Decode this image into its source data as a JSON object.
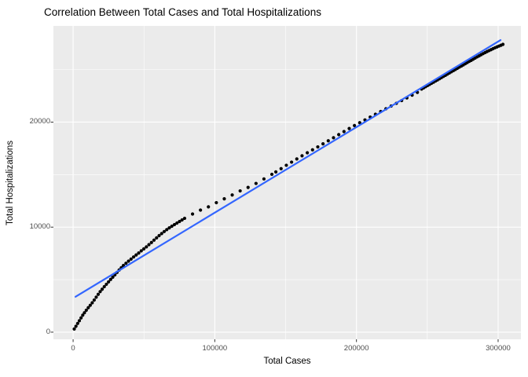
{
  "title": "Correlation Between Total Cases and Total Hospitalizations",
  "chart_data": {
    "type": "scatter",
    "title": "Correlation Between Total Cases and Total Hospitalizations",
    "xlabel": "Total Cases",
    "ylabel": "Total Hospitalizations",
    "xlim": [
      -13900,
      316100
    ],
    "ylim": [
      -680,
      29160
    ],
    "x_major_ticks": [
      0,
      100000,
      200000,
      300000
    ],
    "x_tick_labels": [
      "0",
      "100000",
      "200000",
      "300000"
    ],
    "x_minor_ticks": [
      50000,
      150000,
      250000
    ],
    "y_major_ticks": [
      0,
      10000,
      20000
    ],
    "y_tick_labels": [
      "0",
      "10000",
      "20000"
    ],
    "y_minor_ticks": [
      5000,
      15000,
      25000
    ],
    "grid": true,
    "legend": "none",
    "panel_bg_color": "#EBEBEB",
    "grid_color": "#FFFFFF",
    "tick_mark_color": "#333333",
    "tick_label_color": "#4D4D4D",
    "point_color": "#000000",
    "trend_line": {
      "color": "#3366FF",
      "x1": 1700,
      "y1": 3370,
      "x2": 301700,
      "y2": 27810
    },
    "points": [
      [
        800,
        300
      ],
      [
        2000,
        560
      ],
      [
        3200,
        830
      ],
      [
        4400,
        1090
      ],
      [
        5600,
        1360
      ],
      [
        6800,
        1620
      ],
      [
        8000,
        1850
      ],
      [
        9300,
        2090
      ],
      [
        10700,
        2330
      ],
      [
        12100,
        2560
      ],
      [
        13500,
        2800
      ],
      [
        14900,
        3060
      ],
      [
        16300,
        3330
      ],
      [
        17700,
        3600
      ],
      [
        19100,
        3860
      ],
      [
        20500,
        4090
      ],
      [
        22000,
        4330
      ],
      [
        23500,
        4560
      ],
      [
        25000,
        4790
      ],
      [
        26500,
        5020
      ],
      [
        28000,
        5240
      ],
      [
        29500,
        5460
      ],
      [
        31000,
        5690
      ],
      [
        32500,
        5920
      ],
      [
        34000,
        6140
      ],
      [
        35500,
        6350
      ],
      [
        37300,
        6560
      ],
      [
        39100,
        6760
      ],
      [
        40900,
        6960
      ],
      [
        42700,
        7160
      ],
      [
        44500,
        7350
      ],
      [
        46300,
        7540
      ],
      [
        48100,
        7740
      ],
      [
        49900,
        7930
      ],
      [
        51700,
        8120
      ],
      [
        53500,
        8330
      ],
      [
        55300,
        8540
      ],
      [
        57100,
        8760
      ],
      [
        58900,
        8980
      ],
      [
        60700,
        9190
      ],
      [
        62500,
        9390
      ],
      [
        64300,
        9580
      ],
      [
        66100,
        9760
      ],
      [
        67900,
        9930
      ],
      [
        69700,
        10090
      ],
      [
        71500,
        10240
      ],
      [
        73300,
        10390
      ],
      [
        75100,
        10540
      ],
      [
        76900,
        10690
      ],
      [
        78700,
        10840
      ],
      [
        84300,
        11250
      ],
      [
        89900,
        11620
      ],
      [
        95500,
        11930
      ],
      [
        101100,
        12330
      ],
      [
        106700,
        12700
      ],
      [
        112300,
        13060
      ],
      [
        117900,
        13450
      ],
      [
        123500,
        13780
      ],
      [
        129100,
        14160
      ],
      [
        134700,
        14590
      ],
      [
        140300,
        15030
      ],
      [
        143100,
        15260
      ],
      [
        146800,
        15570
      ],
      [
        150500,
        15890
      ],
      [
        154200,
        16190
      ],
      [
        157900,
        16490
      ],
      [
        161600,
        16790
      ],
      [
        165300,
        17080
      ],
      [
        169000,
        17360
      ],
      [
        172700,
        17640
      ],
      [
        176400,
        17930
      ],
      [
        180100,
        18220
      ],
      [
        183800,
        18510
      ],
      [
        187500,
        18810
      ],
      [
        191200,
        19100
      ],
      [
        194900,
        19390
      ],
      [
        198600,
        19670
      ],
      [
        202300,
        19940
      ],
      [
        206000,
        20210
      ],
      [
        209700,
        20480
      ],
      [
        213400,
        20750
      ],
      [
        217100,
        21010
      ],
      [
        220800,
        21270
      ],
      [
        224500,
        21530
      ],
      [
        228200,
        21790
      ],
      [
        231900,
        22050
      ],
      [
        235600,
        22310
      ],
      [
        239300,
        22570
      ],
      [
        243000,
        22830
      ],
      [
        246000,
        23150
      ],
      [
        247400,
        23260
      ],
      [
        248800,
        23370
      ],
      [
        250200,
        23480
      ],
      [
        251600,
        23590
      ],
      [
        253000,
        23700
      ],
      [
        254400,
        23800
      ],
      [
        255800,
        23910
      ],
      [
        257200,
        24020
      ],
      [
        258600,
        24130
      ],
      [
        260000,
        24240
      ],
      [
        261400,
        24350
      ],
      [
        262800,
        24460
      ],
      [
        264200,
        24570
      ],
      [
        265600,
        24680
      ],
      [
        267000,
        24790
      ],
      [
        268400,
        24900
      ],
      [
        269800,
        25010
      ],
      [
        271200,
        25120
      ],
      [
        272600,
        25230
      ],
      [
        274000,
        25340
      ],
      [
        275400,
        25450
      ],
      [
        276800,
        25560
      ],
      [
        278200,
        25670
      ],
      [
        279600,
        25780
      ],
      [
        281000,
        25880
      ],
      [
        282400,
        25990
      ],
      [
        283800,
        26100
      ],
      [
        285200,
        26210
      ],
      [
        286600,
        26310
      ],
      [
        288000,
        26420
      ],
      [
        289400,
        26520
      ],
      [
        290800,
        26620
      ],
      [
        292200,
        26720
      ],
      [
        293600,
        26810
      ],
      [
        295000,
        26900
      ],
      [
        296400,
        26990
      ],
      [
        297800,
        27080
      ],
      [
        299200,
        27160
      ],
      [
        300600,
        27240
      ],
      [
        302000,
        27320
      ],
      [
        303400,
        27400
      ]
    ]
  }
}
